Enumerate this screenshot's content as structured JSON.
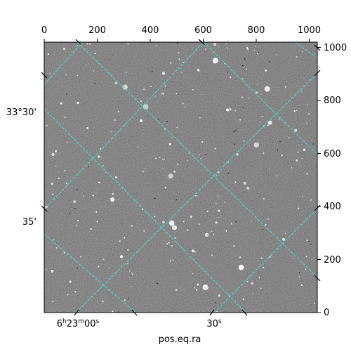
{
  "figure": {
    "top_ticks": [
      "0",
      "200",
      "400",
      "600",
      "800",
      "1000"
    ],
    "right_ticks": [
      "0",
      "200",
      "400",
      "600",
      "800",
      "1000"
    ],
    "left_ticks": [
      "33°30'",
      "35'"
    ],
    "bottom_ticks": [
      "6h23m00s",
      "30s"
    ],
    "bottom_tick_parts": [
      {
        "a": "6",
        "b": "h",
        "c": "23",
        "d": "m",
        "e": "00",
        "f": "s"
      },
      {
        "a": "30",
        "f": "s"
      }
    ],
    "xlabel": "pos.eq.ra",
    "grid_color": "#40e0d0",
    "image_background": "#6e6e6e"
  }
}
